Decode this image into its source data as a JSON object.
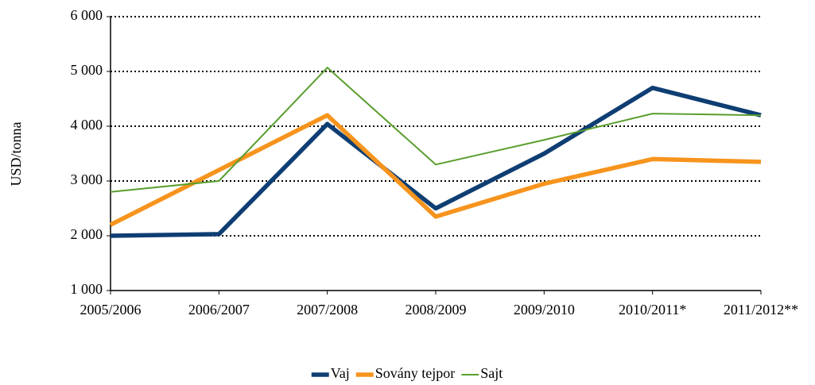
{
  "chart_data": {
    "type": "line",
    "y_label": "USD/tonna",
    "categories": [
      "2005/2006",
      "2006/2007",
      "2007/2008",
      "2008/2009",
      "2009/2010",
      "2010/2011*",
      "2011/2012**"
    ],
    "series": [
      {
        "name": "Vaj",
        "color": "#0e3e73",
        "values": [
          2000,
          2030,
          4040,
          2500,
          3500,
          4700,
          4200
        ]
      },
      {
        "name": "Sovány tejpor",
        "color": "#f7941d",
        "values": [
          2200,
          3200,
          4200,
          2350,
          2950,
          3400,
          3350
        ]
      },
      {
        "name": "Sajt",
        "color": "#5a9e2f",
        "values": [
          2800,
          3000,
          5070,
          3300,
          3750,
          4230,
          4200
        ]
      }
    ],
    "ylim": [
      1000,
      6000
    ],
    "yticks": [
      {
        "value": 1000,
        "label": "1 000"
      },
      {
        "value": 2000,
        "label": "2 000"
      },
      {
        "value": 3000,
        "label": "3 000"
      },
      {
        "value": 4000,
        "label": "4 000"
      },
      {
        "value": 5000,
        "label": "5 000"
      },
      {
        "value": 6000,
        "label": "6 000"
      }
    ],
    "grid": true,
    "legend": "bottom"
  }
}
